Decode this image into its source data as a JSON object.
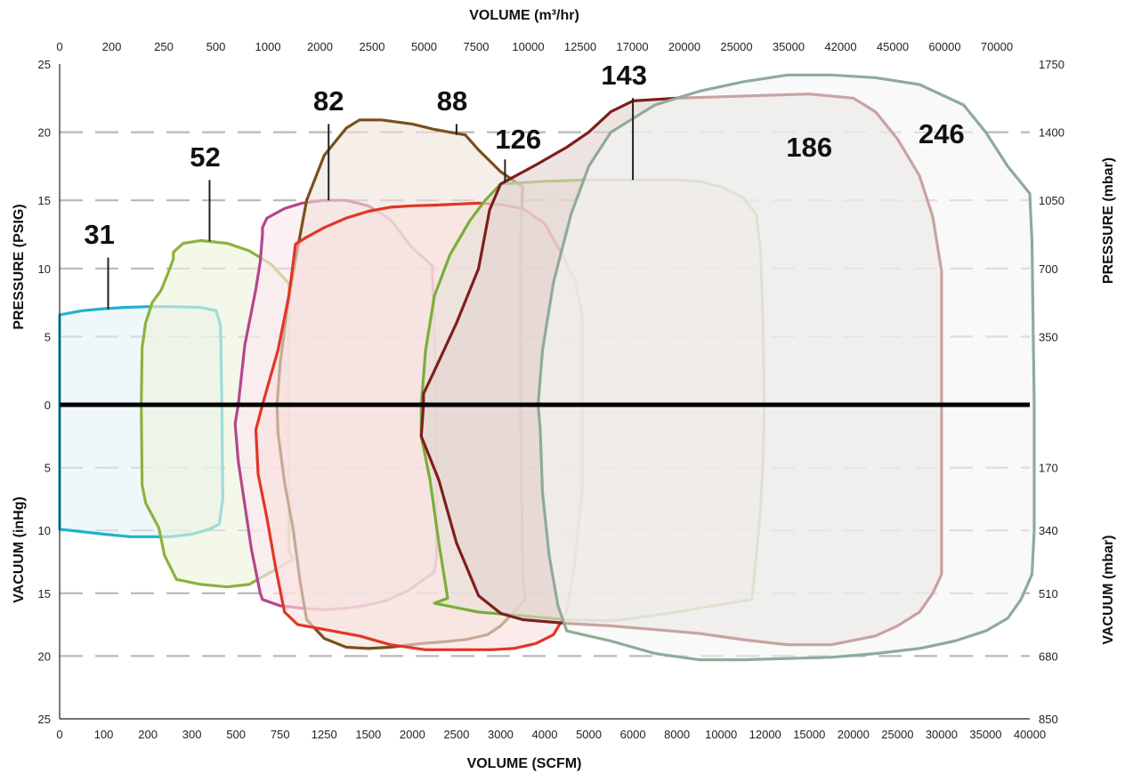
{
  "chart_data": {
    "type": "area",
    "title": "",
    "top_axis_title": "VOLUME (m³/hr)",
    "bottom_axis_title": "VOLUME (SCFM)",
    "left_pressure_title": "PRESSURE (PSIG)",
    "left_vacuum_title": "VACUUM (inHg)",
    "right_pressure_title": "PRESSURE (mbar)",
    "right_vacuum_title": "VACUUM (mbar)",
    "x_ticks_scfm": [
      "0",
      "100",
      "200",
      "300",
      "500",
      "750",
      "1250",
      "1500",
      "2000",
      "2500",
      "3000",
      "4000",
      "5000",
      "6000",
      "8000",
      "10000",
      "12000",
      "15000",
      "20000",
      "25000",
      "30000",
      "35000",
      "40000"
    ],
    "x_ticks_m3hr": [
      "0",
      "200",
      "250",
      "500",
      "1000",
      "2000",
      "2500",
      "5000",
      "7500",
      "10000",
      "12500",
      "17000",
      "20000",
      "25000",
      "35000",
      "42000",
      "45000",
      "60000",
      "70000"
    ],
    "left_pressure_ticks": [
      "25",
      "20",
      "15",
      "10",
      "5"
    ],
    "left_vacuum_ticks": [
      "5",
      "10",
      "15",
      "20",
      "25"
    ],
    "zero_label": "0",
    "right_pressure_ticks": [
      "1750",
      "1400",
      "1050",
      "700",
      "350"
    ],
    "right_vacuum_ticks": [
      "170",
      "340",
      "510",
      "680",
      "850"
    ],
    "pressure_range_psig": [
      0,
      25
    ],
    "vacuum_range_inhg": [
      0,
      25
    ],
    "grid": "dashed horizontal",
    "note": "Horizontal scale is non-uniform; x positions are expressed as tick-index units on the SCFM axis (0 = '0' tick, 22 = '40000' tick). Positive y = pressure (PSIG), negative y = vacuum (inHg).",
    "series": [
      {
        "name": "31",
        "color": "#1FB3CF",
        "fill": "#E3F4F8",
        "points": [
          [
            0,
            6.6
          ],
          [
            0.5,
            6.9
          ],
          [
            1,
            7.05
          ],
          [
            1.5,
            7.15
          ],
          [
            2,
            7.2
          ],
          [
            2.5,
            7.2
          ],
          [
            3.2,
            7.15
          ],
          [
            3.55,
            6.9
          ],
          [
            3.65,
            5.8
          ],
          [
            3.68,
            0
          ],
          [
            3.7,
            -7.5
          ],
          [
            3.62,
            -9.5
          ],
          [
            3.4,
            -9.9
          ],
          [
            3,
            -10.3
          ],
          [
            2.5,
            -10.5
          ],
          [
            1.6,
            -10.5
          ],
          [
            1,
            -10.3
          ],
          [
            0.5,
            -10.1
          ],
          [
            0,
            -9.9
          ]
        ]
      },
      {
        "name": "52",
        "color": "#8DB23C",
        "fill": "#EEF4DC",
        "points": [
          [
            2.58,
            11.2
          ],
          [
            2.58,
            10.7
          ],
          [
            2.45,
            9.6
          ],
          [
            2.3,
            8.4
          ],
          [
            2.1,
            7.5
          ],
          [
            1.95,
            6
          ],
          [
            1.87,
            4.2
          ],
          [
            1.85,
            0
          ],
          [
            1.87,
            -6.4
          ],
          [
            1.95,
            -7.8
          ],
          [
            2.1,
            -8.8
          ],
          [
            2.25,
            -9.8
          ],
          [
            2.38,
            -12
          ],
          [
            2.65,
            -13.9
          ],
          [
            3.2,
            -14.3
          ],
          [
            3.8,
            -14.5
          ],
          [
            4.3,
            -14.3
          ],
          [
            5.3,
            -12.3
          ],
          [
            5.2,
            -11.7
          ],
          [
            5.2,
            8.9
          ],
          [
            4.8,
            10.3
          ],
          [
            4.3,
            11.3
          ],
          [
            3.8,
            11.85
          ],
          [
            3.2,
            12.05
          ],
          [
            2.8,
            11.85
          ]
        ]
      },
      {
        "name": "82",
        "color": "#B5468E",
        "fill": "#FBE6EF",
        "points": [
          [
            4.6,
            13.0
          ],
          [
            4.7,
            13.7
          ],
          [
            5.1,
            14.4
          ],
          [
            5.5,
            14.8
          ],
          [
            6.0,
            15.0
          ],
          [
            6.5,
            15.0
          ],
          [
            7.0,
            14.6
          ],
          [
            7.5,
            13.6
          ],
          [
            8.0,
            11.5
          ],
          [
            8.45,
            10.2
          ],
          [
            8.55,
            0
          ],
          [
            8.55,
            -12
          ],
          [
            8.5,
            -13.3
          ],
          [
            7.9,
            -14.8
          ],
          [
            7.4,
            -15.6
          ],
          [
            6.9,
            -16
          ],
          [
            6.5,
            -16.2
          ],
          [
            6.0,
            -16.3
          ],
          [
            5.5,
            -16.2
          ],
          [
            5.0,
            -16
          ],
          [
            4.6,
            -15.5
          ],
          [
            4.55,
            -15
          ],
          [
            4.35,
            -11.5
          ],
          [
            4.05,
            -4.5
          ],
          [
            3.98,
            -1.5
          ],
          [
            4.05,
            0
          ],
          [
            4.2,
            4.4
          ],
          [
            4.45,
            8.5
          ],
          [
            4.55,
            10.5
          ],
          [
            4.6,
            12.5
          ]
        ]
      },
      {
        "name": "88",
        "color": "#7A4F1E",
        "fill": "#F0E3DA",
        "points": [
          [
            5.6,
            15.0
          ],
          [
            6.0,
            18.3
          ],
          [
            6.5,
            20.3
          ],
          [
            6.8,
            20.9
          ],
          [
            7.3,
            20.9
          ],
          [
            8.0,
            20.6
          ],
          [
            8.5,
            20.2
          ],
          [
            9.2,
            19.8
          ],
          [
            9.5,
            18.7
          ],
          [
            10.0,
            17.1
          ],
          [
            10.5,
            16.0
          ],
          [
            10.45,
            12
          ],
          [
            10.45,
            0
          ],
          [
            10.5,
            -13
          ],
          [
            10.55,
            -15.5
          ],
          [
            10.3,
            -16.5
          ],
          [
            10.0,
            -17.6
          ],
          [
            9.7,
            -18.3
          ],
          [
            9.2,
            -18.7
          ],
          [
            8.6,
            -18.9
          ],
          [
            8.2,
            -19
          ],
          [
            7.5,
            -19.3
          ],
          [
            7.0,
            -19.4
          ],
          [
            6.5,
            -19.3
          ],
          [
            6.0,
            -18.6
          ],
          [
            5.6,
            -17.1
          ],
          [
            5.45,
            -14
          ],
          [
            5.3,
            -10
          ],
          [
            5.1,
            -6.2
          ],
          [
            4.95,
            -2.2
          ],
          [
            4.93,
            0
          ],
          [
            5.0,
            3
          ],
          [
            5.2,
            8
          ],
          [
            5.4,
            11.5
          ]
        ]
      },
      {
        "name": "126",
        "color": "#E23527",
        "fill": "#F9E0DE",
        "points": [
          [
            5.35,
            11.8
          ],
          [
            5.6,
            12.3
          ],
          [
            6.0,
            13.0
          ],
          [
            6.5,
            13.7
          ],
          [
            7.0,
            14.2
          ],
          [
            7.5,
            14.5
          ],
          [
            8.0,
            14.6
          ],
          [
            8.5,
            14.65
          ],
          [
            9.5,
            14.8
          ],
          [
            10.0,
            14.7
          ],
          [
            10.5,
            14.4
          ],
          [
            11.0,
            13.3
          ],
          [
            11.4,
            11
          ],
          [
            11.7,
            9
          ],
          [
            11.85,
            6.6
          ],
          [
            11.85,
            0
          ],
          [
            11.85,
            -7
          ],
          [
            11.75,
            -10
          ],
          [
            11.65,
            -13.5
          ],
          [
            11.5,
            -16.5
          ],
          [
            11.2,
            -18.3
          ],
          [
            10.8,
            -19
          ],
          [
            10.3,
            -19.4
          ],
          [
            9.8,
            -19.5
          ],
          [
            9.0,
            -19.5
          ],
          [
            8.3,
            -19.5
          ],
          [
            7.5,
            -19.1
          ],
          [
            6.8,
            -18.4
          ],
          [
            5.4,
            -17.5
          ],
          [
            5.1,
            -16.5
          ],
          [
            4.9,
            -13
          ],
          [
            4.7,
            -9
          ],
          [
            4.5,
            -5.5
          ],
          [
            4.45,
            -2
          ],
          [
            4.6,
            0
          ],
          [
            4.95,
            4
          ],
          [
            5.2,
            8
          ]
        ]
      },
      {
        "name": "143",
        "color": "#7AAE3C",
        "fill": "#E9E1D9",
        "points": [
          [
            10.0,
            16.2
          ],
          [
            10.5,
            16.3
          ],
          [
            11.0,
            16.4
          ],
          [
            12.0,
            16.5
          ],
          [
            13.0,
            16.5
          ],
          [
            14.0,
            16.5
          ],
          [
            14.5,
            16.4
          ],
          [
            15.0,
            16.0
          ],
          [
            15.5,
            15.2
          ],
          [
            15.8,
            14
          ],
          [
            15.9,
            11
          ],
          [
            15.95,
            6
          ],
          [
            15.98,
            0
          ],
          [
            15.95,
            -4.5
          ],
          [
            15.9,
            -8
          ],
          [
            15.8,
            -12
          ],
          [
            15.7,
            -15.5
          ],
          [
            15.0,
            -15.9
          ],
          [
            14.0,
            -16.5
          ],
          [
            13.0,
            -17.0
          ],
          [
            12.5,
            -17.2
          ],
          [
            11.5,
            -17.1
          ],
          [
            10.5,
            -16.8
          ],
          [
            9.5,
            -16.5
          ],
          [
            8.5,
            -15.8
          ],
          [
            8.8,
            -15.4
          ],
          [
            8.6,
            -11
          ],
          [
            8.4,
            -6
          ],
          [
            8.2,
            -2.5
          ],
          [
            8.2,
            0
          ],
          [
            8.3,
            4
          ],
          [
            8.5,
            8
          ],
          [
            8.85,
            11
          ],
          [
            9.3,
            13.5
          ],
          [
            9.65,
            15
          ],
          [
            10.0,
            16.2
          ]
        ]
      },
      {
        "name": "186",
        "color": "#7E1F1E",
        "fill": "#E2D4D0",
        "points": [
          [
            10.0,
            16.2
          ],
          [
            10.8,
            17.6
          ],
          [
            11.5,
            18.9
          ],
          [
            12.0,
            20.0
          ],
          [
            12.5,
            21.5
          ],
          [
            13.0,
            22.3
          ],
          [
            14.0,
            22.5
          ],
          [
            15.0,
            22.6
          ],
          [
            16.0,
            22.7
          ],
          [
            17.0,
            22.8
          ],
          [
            18.0,
            22.5
          ],
          [
            18.5,
            21.5
          ],
          [
            19.0,
            19.5
          ],
          [
            19.5,
            16.8
          ],
          [
            19.8,
            13.8
          ],
          [
            20.0,
            9.8
          ],
          [
            20.0,
            0
          ],
          [
            20.0,
            -13.5
          ],
          [
            19.8,
            -15
          ],
          [
            19.5,
            -16.5
          ],
          [
            19.0,
            -17.6
          ],
          [
            18.5,
            -18.4
          ],
          [
            17.5,
            -19.1
          ],
          [
            16.5,
            -19.1
          ],
          [
            15.5,
            -18.7
          ],
          [
            14.5,
            -18.2
          ],
          [
            13.5,
            -17.9
          ],
          [
            12.5,
            -17.6
          ],
          [
            11.5,
            -17.4
          ],
          [
            10.5,
            -17.1
          ],
          [
            10.0,
            -16.6
          ],
          [
            9.5,
            -15.2
          ],
          [
            9.0,
            -11
          ],
          [
            8.6,
            -6
          ],
          [
            8.2,
            -2.5
          ],
          [
            8.25,
            0
          ],
          [
            8.25,
            0.8
          ],
          [
            8.5,
            2.5
          ],
          [
            9.0,
            6
          ],
          [
            9.5,
            10
          ],
          [
            9.75,
            14.3
          ],
          [
            10.0,
            16.2
          ]
        ]
      },
      {
        "name": "246",
        "color": "#8FAB98",
        "fill": "#F3F5F3",
        "points": [
          [
            12.5,
            20.0
          ],
          [
            13.0,
            21.0
          ],
          [
            13.5,
            22.0
          ],
          [
            14.5,
            23.0
          ],
          [
            15.5,
            23.7
          ],
          [
            16.5,
            24.2
          ],
          [
            17.5,
            24.2
          ],
          [
            18.5,
            24.0
          ],
          [
            19.5,
            23.5
          ],
          [
            20.5,
            22.0
          ],
          [
            21.0,
            20.0
          ],
          [
            21.5,
            17.5
          ],
          [
            22.0,
            15.5
          ],
          [
            22.05,
            12
          ],
          [
            22.1,
            0
          ],
          [
            22.1,
            -10
          ],
          [
            22.05,
            -13.5
          ],
          [
            21.8,
            -15.5
          ],
          [
            21.5,
            -17.0
          ],
          [
            21.0,
            -18.0
          ],
          [
            20.3,
            -18.8
          ],
          [
            19.5,
            -19.4
          ],
          [
            18.5,
            -19.8
          ],
          [
            17.5,
            -20.1
          ],
          [
            16.5,
            -20.2
          ],
          [
            15.5,
            -20.3
          ],
          [
            14.5,
            -20.3
          ],
          [
            13.5,
            -19.8
          ],
          [
            12.5,
            -18.8
          ],
          [
            11.5,
            -18.0
          ],
          [
            11.3,
            -16
          ],
          [
            11.1,
            -12
          ],
          [
            10.95,
            -7
          ],
          [
            10.9,
            -2
          ],
          [
            10.85,
            0
          ],
          [
            10.95,
            4
          ],
          [
            11.2,
            9
          ],
          [
            11.6,
            14
          ],
          [
            12.0,
            17.5
          ],
          [
            12.5,
            20.0
          ]
        ]
      }
    ],
    "labels": [
      {
        "text": "31",
        "x": 0.9,
        "y": 11.8,
        "leader_x": 1.1,
        "leader_y0": 10.8,
        "leader_y1": 7.0
      },
      {
        "text": "52",
        "x": 3.3,
        "y": 17.5,
        "leader_x": 3.4,
        "leader_y0": 16.5,
        "leader_y1": 12.0
      },
      {
        "text": "82",
        "x": 6.1,
        "y": 21.6,
        "leader_x": 6.1,
        "leader_y0": 20.6,
        "leader_y1": 15.0
      },
      {
        "text": "88",
        "x": 8.9,
        "y": 21.6,
        "leader_x": 9.0,
        "leader_y0": 20.6,
        "leader_y1": 19.8
      },
      {
        "text": "126",
        "x": 10.4,
        "y": 18.8,
        "leader_x": 10.1,
        "leader_y0": 18.0,
        "leader_y1": 16.3
      },
      {
        "text": "143",
        "x": 12.8,
        "y": 23.5,
        "leader_x": 13.0,
        "leader_y0": 22.5,
        "leader_y1": 16.5
      },
      {
        "text": "186",
        "x": 17.0,
        "y": 18.2,
        "leader_x": null
      },
      {
        "text": "246",
        "x": 20.0,
        "y": 19.2,
        "leader_x": null
      }
    ]
  }
}
